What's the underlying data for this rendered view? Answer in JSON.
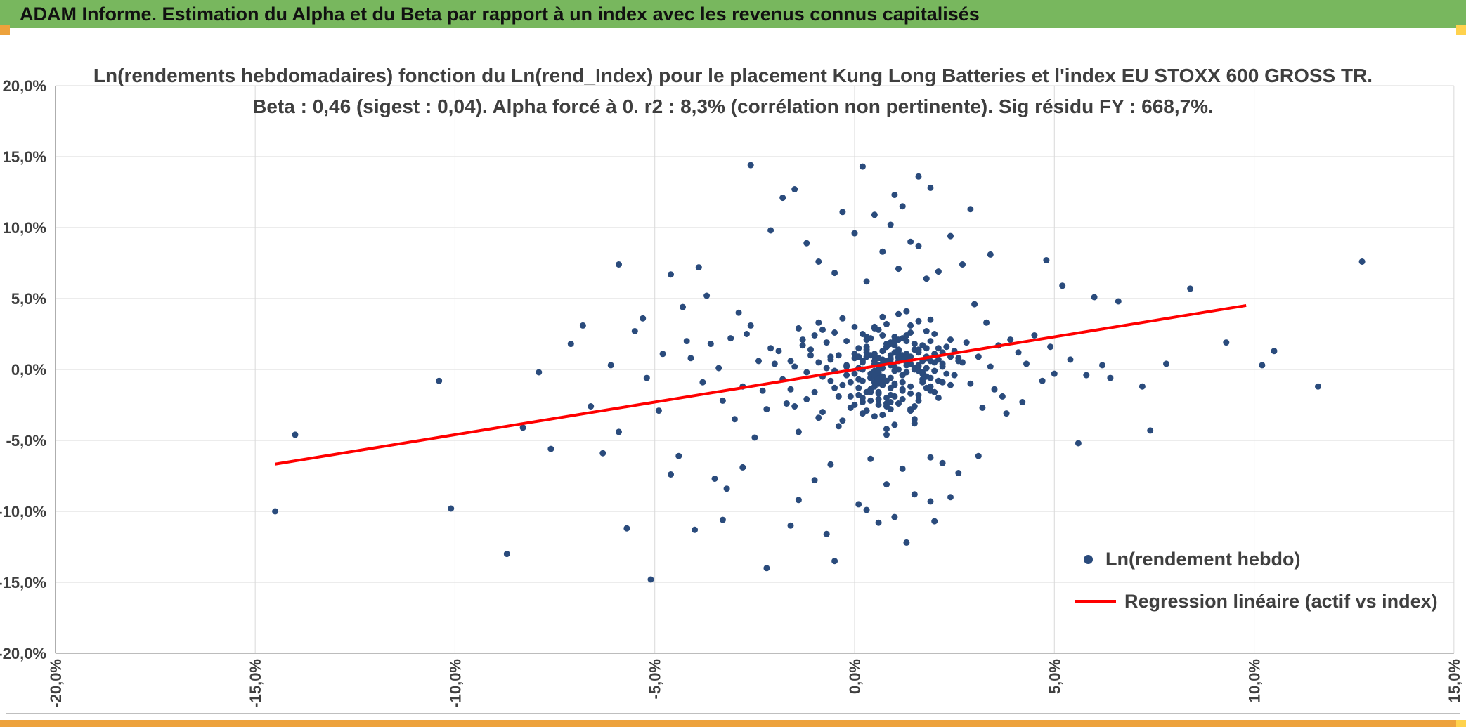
{
  "window": {
    "title": "ADAM Informe. Estimation du Alpha et du Beta par rapport à un index avec les revenus connus capitalisés"
  },
  "colors": {
    "header_green": "#78B75E",
    "accent_orange": "#EDA23C",
    "accent_yellow": "#FFD24D",
    "dot_blue": "#2A4B7C",
    "line_red": "#FF0000",
    "grid": "#D9D9D9",
    "axis_line": "#A6A6A6",
    "axis_text": "#3F3F3F"
  },
  "chart_data": {
    "type": "scatter",
    "title_line1": "Ln(rendements hebdomadaires) fonction du Ln(rend_Index) pour le placement Kung Long Batteries  et l'index EU STOXX 600 GROSS TR.",
    "title_line2": "Beta : 0,46 (sigest : 0,04). Alpha forcé à 0. r2 : 8,3% (corrélation non pertinente). Sig résidu FY : 668,7%.",
    "xlabel": "",
    "ylabel": "",
    "xlim": [
      -20,
      15
    ],
    "ylim": [
      -20,
      20
    ],
    "grid": true,
    "legend_position": "inside-bottom-right",
    "x_ticks": [
      "-20,0%",
      "-15,0%",
      "-10,0%",
      "-5,0%",
      "0,0%",
      "5,0%",
      "10,0%",
      "15,0%"
    ],
    "x_tick_values": [
      -20,
      -15,
      -10,
      -5,
      0,
      5,
      10,
      15
    ],
    "y_ticks": [
      "20,0%",
      "15,0%",
      "10,0%",
      "5,0%",
      "0,0%",
      "-5,0%",
      "-10,0%",
      "-15,0%",
      "-20,0%"
    ],
    "y_tick_values": [
      20,
      15,
      10,
      5,
      0,
      -5,
      -10,
      -15,
      -20
    ],
    "legend": [
      {
        "label": "Ln(rendement hebdo)",
        "type": "point"
      },
      {
        "label": "Regression linéaire (actif vs index)",
        "type": "line"
      }
    ],
    "regression": {
      "beta": 0.46,
      "alpha": 0,
      "x_start": -14.5,
      "x_end": 9.8
    },
    "points": [
      [
        -0.2,
        0.3
      ],
      [
        0.5,
        -1.2
      ],
      [
        1.1,
        0.8
      ],
      [
        0.3,
        2.1
      ],
      [
        -0.8,
        -0.5
      ],
      [
        1.6,
        1.4
      ],
      [
        0.9,
        -2.3
      ],
      [
        0.1,
        0.9
      ],
      [
        2.2,
        0.4
      ],
      [
        -1.3,
        1.7
      ],
      [
        0.7,
        -0.8
      ],
      [
        1.4,
        2.6
      ],
      [
        -0.4,
        -1.9
      ],
      [
        0.6,
        0.2
      ],
      [
        1.9,
        -0.6
      ],
      [
        0.2,
        -3.1
      ],
      [
        -1.0,
        2.4
      ],
      [
        1.2,
        -1.5
      ],
      [
        0.8,
        3.2
      ],
      [
        -0.6,
        0.7
      ],
      [
        1.5,
        0.1
      ],
      [
        0.4,
        -2.2
      ],
      [
        2.0,
        1.1
      ],
      [
        -0.1,
        -0.9
      ],
      [
        0.9,
        1.9
      ],
      [
        -1.5,
        -2.6
      ],
      [
        1.3,
        0.5
      ],
      [
        0.0,
        -0.3
      ],
      [
        2.4,
        -1.1
      ],
      [
        0.6,
        2.8
      ],
      [
        -0.9,
        -3.4
      ],
      [
        1.8,
        0.9
      ],
      [
        0.3,
        -1.6
      ],
      [
        1.0,
        1.2
      ],
      [
        -0.3,
        3.6
      ],
      [
        2.1,
        -2.0
      ],
      [
        0.5,
        0.6
      ],
      [
        1.7,
        -0.2
      ],
      [
        -1.1,
        1.0
      ],
      [
        0.8,
        -4.2
      ],
      [
        1.2,
        2.2
      ],
      [
        -0.5,
        -1.3
      ],
      [
        2.6,
        0.8
      ],
      [
        0.1,
        1.5
      ],
      [
        1.4,
        -2.8
      ],
      [
        0.7,
        0.4
      ],
      [
        -1.8,
        -0.7
      ],
      [
        1.0,
        -0.1
      ],
      [
        0.2,
        2.5
      ],
      [
        1.6,
        -1.8
      ],
      [
        -0.7,
        0.1
      ],
      [
        1.1,
        3.9
      ],
      [
        0.4,
        -0.6
      ],
      [
        2.3,
        1.6
      ],
      [
        -1.2,
        -2.1
      ],
      [
        0.9,
        0.7
      ],
      [
        1.5,
        -3.5
      ],
      [
        0.0,
        1.1
      ],
      [
        0.6,
        -2.5
      ],
      [
        1.9,
        2.0
      ],
      [
        -0.4,
        -4.0
      ],
      [
        1.3,
        0.3
      ],
      [
        0.8,
        1.8
      ],
      [
        -1.6,
        -1.4
      ],
      [
        2.5,
        -0.4
      ],
      [
        0.5,
        3.0
      ],
      [
        1.0,
        -1.0
      ],
      [
        -0.2,
        2.0
      ],
      [
        1.7,
        0.6
      ],
      [
        0.3,
        -2.9
      ],
      [
        2.0,
        -1.6
      ],
      [
        0.7,
        1.3
      ],
      [
        -0.9,
        0.5
      ],
      [
        1.2,
        -0.9
      ],
      [
        0.1,
        -1.8
      ],
      [
        1.8,
        1.5
      ],
      [
        0.6,
        -0.3
      ],
      [
        -1.4,
        2.9
      ],
      [
        2.2,
        0.2
      ],
      [
        0.4,
        1.0
      ],
      [
        1.1,
        -2.4
      ],
      [
        -0.6,
        -0.8
      ],
      [
        1.6,
        3.4
      ],
      [
        0.2,
        0.0
      ],
      [
        0.9,
        -1.3
      ],
      [
        2.8,
        1.9
      ],
      [
        -0.1,
        -2.7
      ],
      [
        1.3,
        1.1
      ],
      [
        0.7,
        -0.5
      ],
      [
        -1.9,
        1.3
      ],
      [
        1.5,
        -3.8
      ],
      [
        0.5,
        0.9
      ],
      [
        1.0,
        2.3
      ],
      [
        -0.3,
        -1.1
      ],
      [
        2.1,
        0.7
      ],
      [
        0.8,
        -2.0
      ],
      [
        1.4,
        0.4
      ],
      [
        -0.8,
        -3.0
      ],
      [
        0.3,
        1.6
      ],
      [
        1.9,
        -1.2
      ],
      [
        0.0,
        0.8
      ],
      [
        1.1,
        1.4
      ],
      [
        -1.2,
        -0.2
      ],
      [
        2.4,
        2.1
      ],
      [
        0.6,
        -1.7
      ],
      [
        0.9,
        0.3
      ],
      [
        -0.5,
        2.6
      ],
      [
        1.7,
        -0.7
      ],
      [
        0.2,
        -2.3
      ],
      [
        1.2,
        1.0
      ],
      [
        0.8,
        -4.6
      ],
      [
        -1.6,
        0.6
      ],
      [
        2.0,
        -0.1
      ],
      [
        0.5,
        2.9
      ],
      [
        1.5,
        -2.6
      ],
      [
        -0.2,
        0.2
      ],
      [
        1.0,
        1.7
      ],
      [
        0.4,
        -1.4
      ],
      [
        2.7,
        0.5
      ],
      [
        0.7,
        3.7
      ],
      [
        -1.0,
        -1.6
      ],
      [
        1.3,
        2.4
      ],
      [
        0.1,
        -0.7
      ],
      [
        1.8,
        0.1
      ],
      [
        0.5,
        -3.3
      ],
      [
        2.2,
        -0.9
      ],
      [
        -0.7,
        1.9
      ],
      [
        0.9,
        0.5
      ],
      [
        1.6,
        -2.2
      ],
      [
        0.3,
        1.2
      ],
      [
        -1.4,
        -4.4
      ],
      [
        1.1,
        0.9
      ],
      [
        0.6,
        -0.2
      ],
      [
        2.5,
        1.3
      ],
      [
        -0.1,
        -1.9
      ],
      [
        1.4,
        3.1
      ],
      [
        0.8,
        -0.8
      ],
      [
        -2.0,
        0.4
      ],
      [
        1.9,
        -1.5
      ],
      [
        0.4,
        2.2
      ],
      [
        1.0,
        -3.9
      ],
      [
        -0.4,
        1.0
      ],
      [
        2.3,
        -0.3
      ],
      [
        0.6,
        0.8
      ],
      [
        0.0,
        -2.5
      ],
      [
        1.5,
        1.8
      ],
      [
        -0.9,
        3.3
      ],
      [
        1.2,
        -0.4
      ],
      [
        0.7,
        0.7
      ],
      [
        2.9,
        -1.0
      ],
      [
        -0.3,
        -3.6
      ],
      [
        1.8,
        2.7
      ],
      [
        0.2,
        0.5
      ],
      [
        1.0,
        -1.1
      ],
      [
        -1.3,
        2.1
      ],
      [
        2.1,
        1.5
      ],
      [
        0.5,
        -0.9
      ],
      [
        1.6,
        0.2
      ],
      [
        0.9,
        -2.8
      ],
      [
        -0.6,
        0.9
      ],
      [
        1.3,
        4.1
      ],
      [
        0.1,
        -1.3
      ],
      [
        2.4,
        0.9
      ],
      [
        0.8,
        1.6
      ],
      [
        -1.7,
        -2.4
      ],
      [
        1.1,
        0.0
      ],
      [
        0.4,
        -0.6
      ],
      [
        1.9,
        3.5
      ],
      [
        0.6,
        -1.0
      ],
      [
        -1.1,
        1.4
      ],
      [
        1.7,
        -0.3
      ],
      [
        0.3,
        2.3
      ],
      [
        1.2,
        -2.1
      ],
      [
        2.6,
        0.6
      ],
      [
        -0.5,
        -0.1
      ],
      [
        0.9,
        1.8
      ],
      [
        1.4,
        -1.7
      ],
      [
        0.0,
        3.0
      ],
      [
        0.7,
        -3.2
      ],
      [
        -1.5,
        0.2
      ],
      [
        2.0,
        2.5
      ],
      [
        0.5,
        -0.5
      ],
      [
        1.1,
        0.6
      ],
      [
        0.2,
        -2.0
      ],
      [
        1.8,
        -1.3
      ],
      [
        -0.8,
        2.8
      ],
      [
        1.3,
        0.8
      ],
      [
        0.6,
        -1.6
      ],
      [
        2.2,
        1.2
      ],
      [
        -0.2,
        -0.4
      ],
      [
        1.0,
        2.0
      ],
      [
        0.8,
        -2.6
      ],
      [
        0.8,
        0.6
      ],
      [
        1.2,
        -0.4
      ],
      [
        0.5,
        1.1
      ],
      [
        1.6,
        0.3
      ],
      [
        0.2,
        -0.8
      ],
      [
        1.0,
        1.9
      ],
      [
        1.4,
        -1.2
      ],
      [
        0.7,
        0.1
      ],
      [
        1.8,
        0.8
      ],
      [
        0.4,
        -1.6
      ],
      [
        1.1,
        2.1
      ],
      [
        0.9,
        -0.6
      ],
      [
        1.5,
        1.4
      ],
      [
        0.6,
        -2.1
      ],
      [
        2.0,
        0.5
      ],
      [
        0.3,
        0.9
      ],
      [
        1.3,
        -0.2
      ],
      [
        0.8,
        1.6
      ],
      [
        1.7,
        -0.9
      ],
      [
        0.5,
        -0.1
      ],
      [
        1.2,
        0.7
      ],
      [
        0.9,
        -1.8
      ],
      [
        1.6,
        1.2
      ],
      [
        0.7,
        2.4
      ],
      [
        1.0,
        0.2
      ],
      [
        0.6,
        -0.7
      ],
      [
        1.4,
        0.9
      ],
      [
        0.3,
        1.4
      ],
      [
        1.8,
        -0.5
      ],
      [
        0.9,
        0.8
      ],
      [
        1.2,
        -1.4
      ],
      [
        0.5,
        0.4
      ],
      [
        1.6,
        -0.1
      ],
      [
        0.8,
        -2.4
      ],
      [
        1.1,
        1.3
      ],
      [
        1.9,
        0.6
      ],
      [
        0.4,
        -0.3
      ],
      [
        1.3,
        2.0
      ],
      [
        0.7,
        -1.1
      ],
      [
        1.5,
        0.0
      ],
      [
        0.2,
        0.6
      ],
      [
        1.0,
        -1.9
      ],
      [
        1.7,
        1.7
      ],
      [
        0.6,
        0.3
      ],
      [
        2.1,
        -0.8
      ],
      [
        0.9,
        1.0
      ],
      [
        1.4,
        -2.9
      ],
      [
        0.1,
        0.1
      ],
      [
        -2.4,
        0.6
      ],
      [
        -2.8,
        -1.2
      ],
      [
        -3.1,
        2.2
      ],
      [
        -2.2,
        -2.8
      ],
      [
        -3.4,
        0.1
      ],
      [
        -2.6,
        3.1
      ],
      [
        -3.8,
        -0.9
      ],
      [
        -2.1,
        1.5
      ],
      [
        -3.0,
        -3.5
      ],
      [
        -2.5,
        -4.8
      ],
      [
        -3.6,
        1.8
      ],
      [
        -2.9,
        4.0
      ],
      [
        -2.3,
        -1.5
      ],
      [
        -3.3,
        -2.2
      ],
      [
        -4.1,
        0.8
      ],
      [
        -2.7,
        2.5
      ],
      [
        3.1,
        0.9
      ],
      [
        3.5,
        -1.4
      ],
      [
        3.9,
        2.1
      ],
      [
        3.2,
        -2.7
      ],
      [
        4.3,
        0.4
      ],
      [
        3.6,
        1.7
      ],
      [
        4.7,
        -0.8
      ],
      [
        3.3,
        3.3
      ],
      [
        4.1,
        1.2
      ],
      [
        3.8,
        -3.1
      ],
      [
        4.5,
        2.4
      ],
      [
        3.4,
        0.2
      ],
      [
        5.0,
        -0.3
      ],
      [
        3.7,
        -1.9
      ],
      [
        4.9,
        1.6
      ],
      [
        5.4,
        0.7
      ],
      [
        5.8,
        -0.4
      ],
      [
        6.2,
        0.3
      ],
      [
        4.2,
        -2.3
      ],
      [
        3.0,
        4.6
      ],
      [
        0.3,
        6.2
      ],
      [
        1.1,
        7.1
      ],
      [
        -0.5,
        6.8
      ],
      [
        1.8,
        6.4
      ],
      [
        0.7,
        8.3
      ],
      [
        1.4,
        9.0
      ],
      [
        -0.9,
        7.6
      ],
      [
        2.1,
        6.9
      ],
      [
        0.0,
        9.6
      ],
      [
        1.6,
        8.7
      ],
      [
        0.9,
        10.2
      ],
      [
        -1.2,
        8.9
      ],
      [
        1.2,
        11.5
      ],
      [
        0.5,
        10.9
      ],
      [
        2.4,
        9.4
      ],
      [
        -0.3,
        11.1
      ],
      [
        1.0,
        12.3
      ],
      [
        1.9,
        12.8
      ],
      [
        -1.8,
        12.1
      ],
      [
        0.2,
        14.3
      ],
      [
        -2.6,
        14.4
      ],
      [
        1.6,
        13.6
      ],
      [
        -1.5,
        12.7
      ],
      [
        2.9,
        11.3
      ],
      [
        3.4,
        8.1
      ],
      [
        -2.1,
        9.8
      ],
      [
        2.7,
        7.4
      ],
      [
        -3.9,
        7.2
      ],
      [
        -5.9,
        7.4
      ],
      [
        -4.6,
        6.7
      ],
      [
        0.4,
        -6.3
      ],
      [
        1.2,
        -7.0
      ],
      [
        -0.6,
        -6.7
      ],
      [
        1.9,
        -6.2
      ],
      [
        0.8,
        -8.1
      ],
      [
        -1.0,
        -7.8
      ],
      [
        1.5,
        -8.8
      ],
      [
        0.1,
        -9.5
      ],
      [
        2.2,
        -6.6
      ],
      [
        -1.4,
        -9.2
      ],
      [
        1.0,
        -10.4
      ],
      [
        0.6,
        -10.8
      ],
      [
        1.9,
        -9.3
      ],
      [
        -0.7,
        -11.6
      ],
      [
        0.3,
        -9.9
      ],
      [
        2.0,
        -10.7
      ],
      [
        -2.2,
        -14.0
      ],
      [
        -0.5,
        -13.5
      ],
      [
        1.3,
        -12.2
      ],
      [
        -1.6,
        -11.0
      ],
      [
        2.6,
        -7.3
      ],
      [
        -3.2,
        -8.4
      ],
      [
        -2.8,
        -6.9
      ],
      [
        3.1,
        -6.1
      ],
      [
        -3.5,
        -7.7
      ],
      [
        2.4,
        -9.0
      ],
      [
        -14.5,
        -10.0
      ],
      [
        -14.0,
        -4.6
      ],
      [
        -10.4,
        -0.8
      ],
      [
        -10.1,
        -9.8
      ],
      [
        -8.7,
        -13.0
      ],
      [
        -8.3,
        -4.1
      ],
      [
        -7.6,
        -5.6
      ],
      [
        -7.1,
        1.8
      ],
      [
        -6.3,
        -5.9
      ],
      [
        -5.7,
        -11.2
      ],
      [
        -5.1,
        -14.8
      ],
      [
        -5.3,
        3.6
      ],
      [
        -5.5,
        2.7
      ],
      [
        -4.9,
        -2.9
      ],
      [
        -4.4,
        -6.1
      ],
      [
        -4.2,
        2.0
      ],
      [
        -4.6,
        -7.4
      ],
      [
        -6.1,
        0.3
      ],
      [
        -6.6,
        -2.6
      ],
      [
        -5.2,
        -0.6
      ],
      [
        -4.8,
        1.1
      ],
      [
        -5.9,
        -4.4
      ],
      [
        -7.9,
        -0.2
      ],
      [
        -6.8,
        3.1
      ],
      [
        -4.3,
        4.4
      ],
      [
        -3.7,
        5.2
      ],
      [
        -4.0,
        -11.3
      ],
      [
        -3.3,
        -10.6
      ],
      [
        6.6,
        4.8
      ],
      [
        7.2,
        -1.2
      ],
      [
        7.8,
        0.4
      ],
      [
        8.4,
        5.7
      ],
      [
        9.3,
        1.9
      ],
      [
        10.2,
        0.3
      ],
      [
        11.6,
        -1.2
      ],
      [
        10.5,
        1.3
      ],
      [
        7.4,
        -4.3
      ],
      [
        6.0,
        5.1
      ],
      [
        5.2,
        5.9
      ],
      [
        4.8,
        7.7
      ],
      [
        5.6,
        -5.2
      ],
      [
        6.4,
        -0.6
      ],
      [
        12.7,
        7.6
      ]
    ]
  }
}
